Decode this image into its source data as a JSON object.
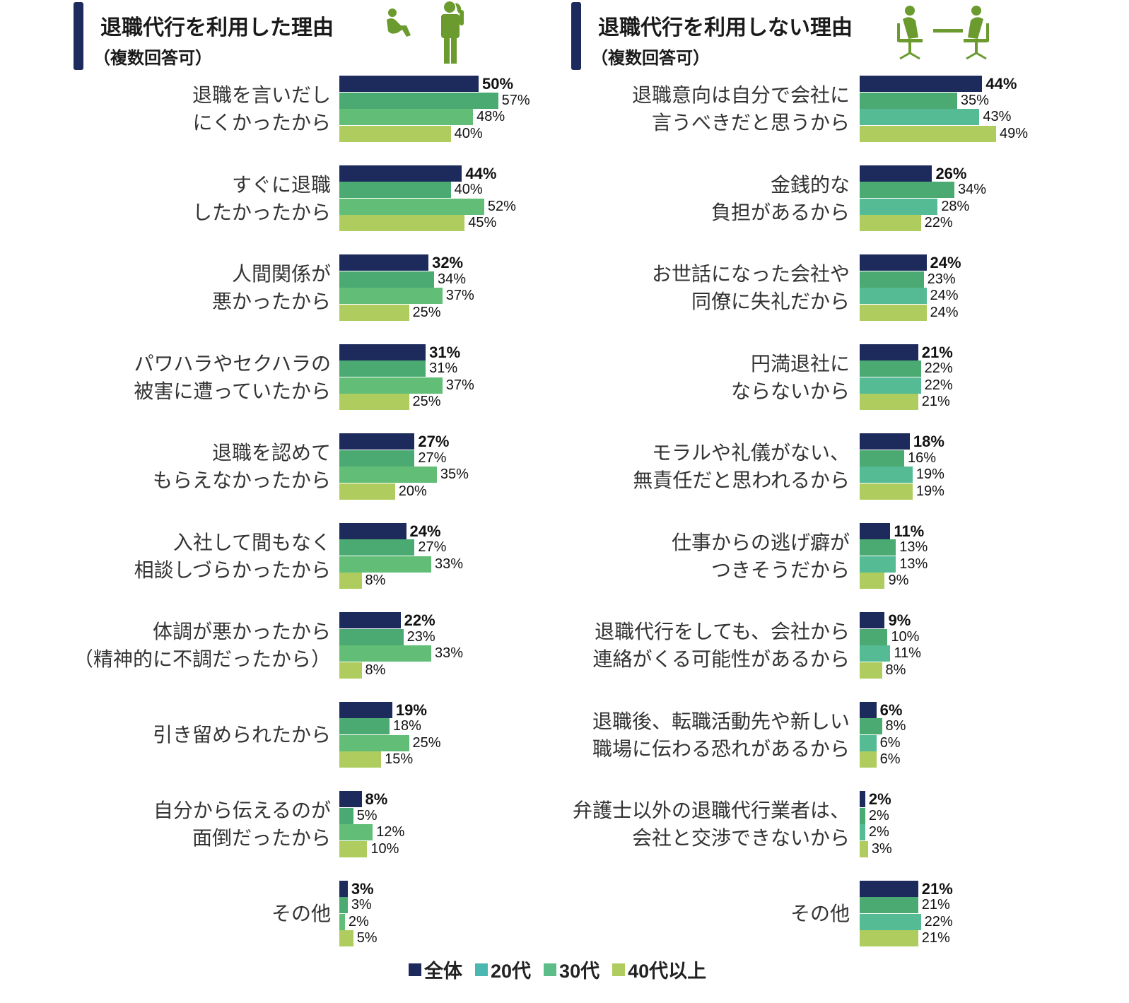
{
  "colors": {
    "全体": "#1c2a5c",
    "20代_left": "#4aaa72",
    "30代_left": "#62be76",
    "20代_right": "#4aaa72",
    "30代_right": "#55bb95",
    "40代以上": "#aecd5e",
    "icon": "#6b9a2e",
    "legend_20代": "#4ab8b0",
    "legend_30代": "#5dbd88"
  },
  "legend": [
    "全体",
    "20代",
    "30代",
    "40代以上"
  ],
  "chart_data": [
    {
      "type": "bar",
      "orientation": "horizontal",
      "title": "退職代行を利用した理由",
      "subtitle": "（複数回答可）",
      "unit": "%",
      "series_names": [
        "全体",
        "20代",
        "30代",
        "40代以上"
      ],
      "categories": [
        "退職を言いだし\nにくかったから",
        "すぐに退職\nしたかったから",
        "人間関係が\n悪かったから",
        "パワハラやセクハラの\n被害に遭っていたから",
        "退職を認めて\nもらえなかったから",
        "入社して間もなく\n相談しづらかったから",
        "体調が悪かったから\n（精神的に不調だったから）",
        "引き留められたから",
        "自分から伝えるのが\n面倒だったから",
        "その他"
      ],
      "values": [
        [
          50,
          57,
          48,
          40
        ],
        [
          44,
          40,
          52,
          45
        ],
        [
          32,
          34,
          37,
          25
        ],
        [
          31,
          31,
          37,
          25
        ],
        [
          27,
          27,
          35,
          20
        ],
        [
          24,
          27,
          33,
          8
        ],
        [
          22,
          23,
          33,
          8
        ],
        [
          19,
          18,
          25,
          15
        ],
        [
          8,
          5,
          12,
          10
        ],
        [
          3,
          3,
          2,
          5
        ]
      ]
    },
    {
      "type": "bar",
      "orientation": "horizontal",
      "title": "退職代行を利用しない理由",
      "subtitle": "（複数回答可）",
      "unit": "%",
      "series_names": [
        "全体",
        "20代",
        "30代",
        "40代以上"
      ],
      "categories": [
        "退職意向は自分で会社に\n言うべきだと思うから",
        "金銭的な\n負担があるから",
        "お世話になった会社や\n同僚に失礼だから",
        "円満退社に\nならないから",
        "モラルや礼儀がない、\n無責任だと思われるから",
        "仕事からの逃げ癖が\nつきそうだから",
        "退職代行をしても、会社から\n連絡がくる可能性があるから",
        "退職後、転職活動先や新しい\n職場に伝わる恐れがあるから",
        "弁護士以外の退職代行業者は、\n会社と交渉できないから",
        "その他"
      ],
      "values": [
        [
          44,
          35,
          43,
          49
        ],
        [
          26,
          34,
          28,
          22
        ],
        [
          24,
          23,
          24,
          24
        ],
        [
          21,
          22,
          22,
          21
        ],
        [
          18,
          16,
          19,
          19
        ],
        [
          11,
          13,
          13,
          9
        ],
        [
          9,
          10,
          11,
          8
        ],
        [
          6,
          8,
          6,
          6
        ],
        [
          2,
          2,
          2,
          3
        ],
        [
          21,
          21,
          22,
          21
        ]
      ]
    }
  ]
}
